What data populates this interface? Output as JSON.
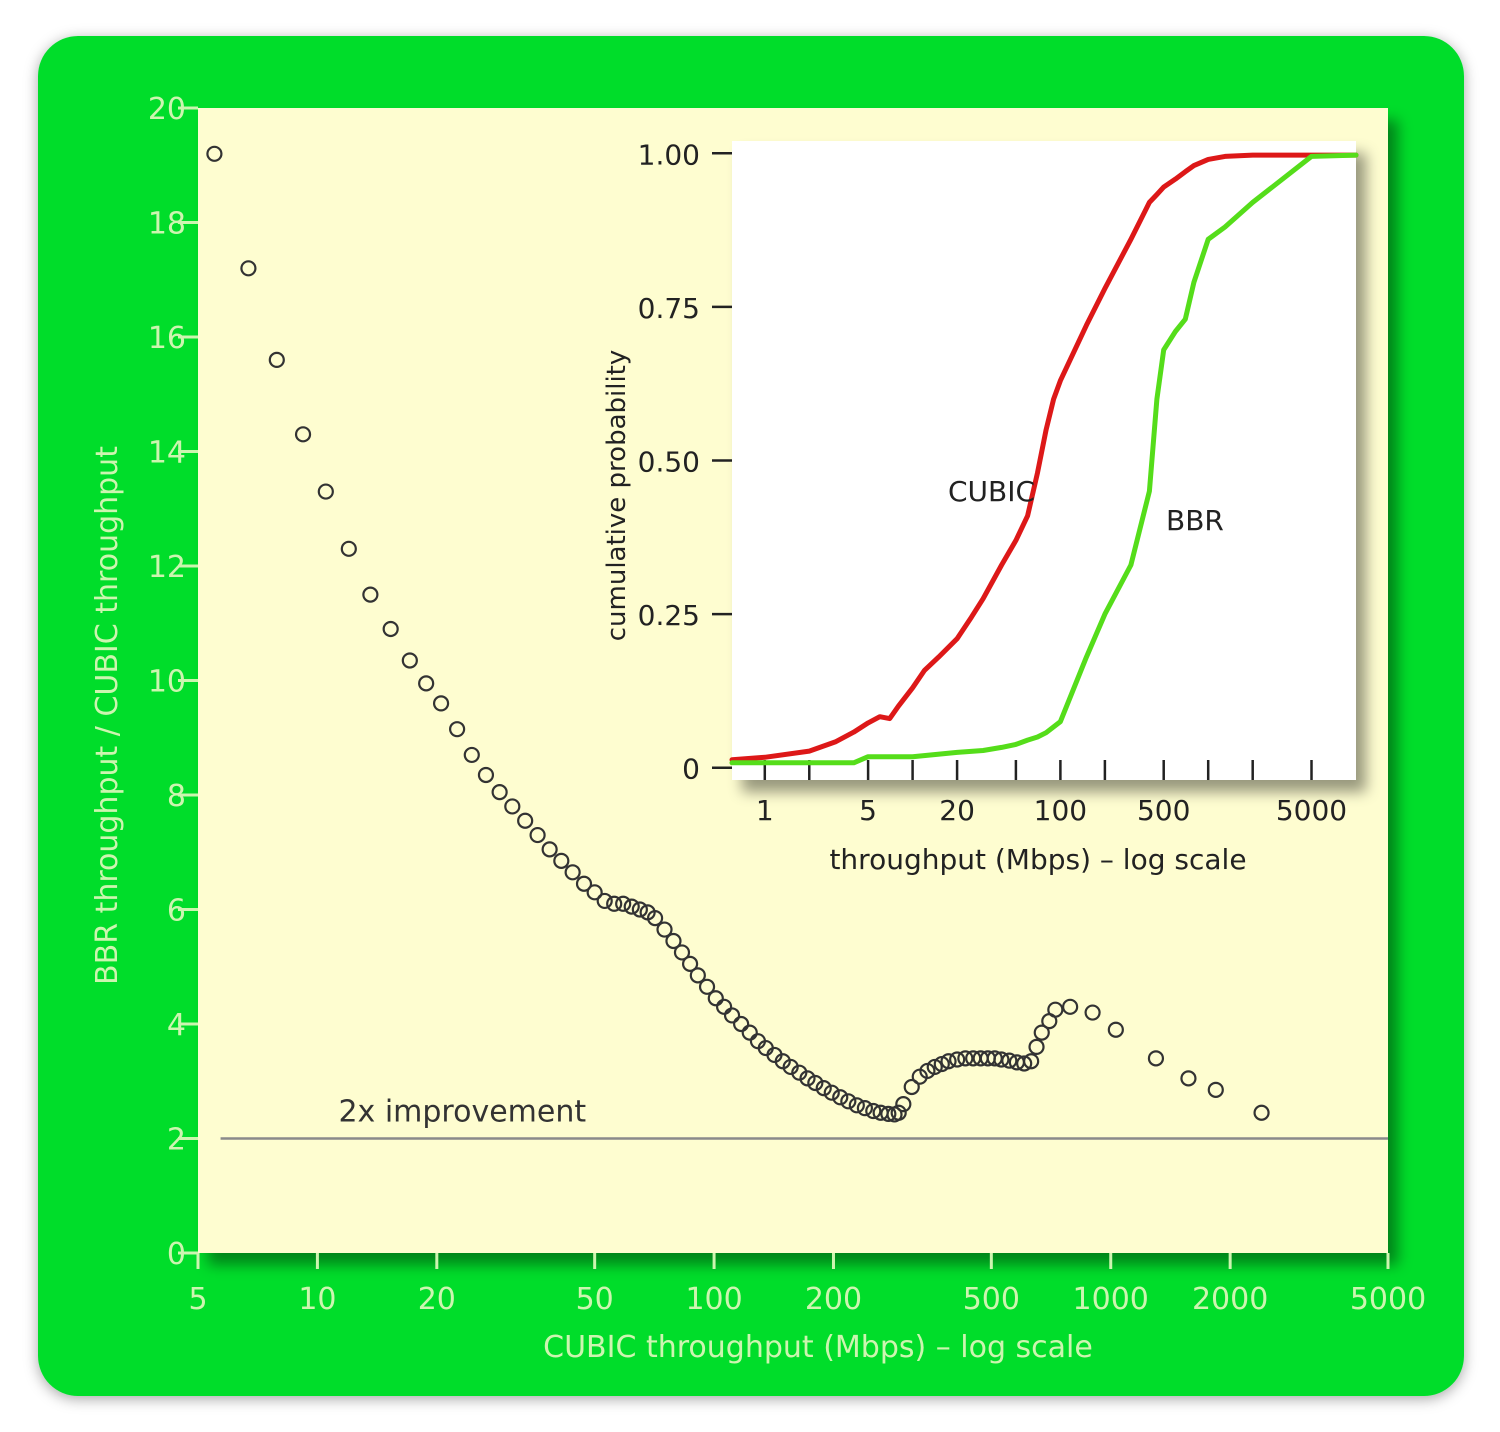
{
  "colors": {
    "frame": "#00dd2a",
    "plot_bg": "#fefdd0",
    "outer_axis_text": "#cdf5b0",
    "scatter_marker": "#333333",
    "cubic": "#dd1818",
    "bbr": "#55dd1a",
    "reference_line": "#8a8a8a"
  },
  "chart_data": [
    {
      "type": "scatter",
      "xlabel": "CUBIC throughput (Mbps) – log scale",
      "ylabel": "BBR throughput / CUBIC throughput",
      "x_scale": "log",
      "xlim": [
        5,
        5000
      ],
      "ylim": [
        0,
        20
      ],
      "x_ticks": [
        5,
        10,
        20,
        50,
        100,
        200,
        500,
        1000,
        2000,
        5000
      ],
      "x_tick_labels": [
        "5",
        "10",
        "20",
        "50",
        "100",
        "200",
        "500",
        "1000",
        "2000",
        "5000"
      ],
      "y_ticks": [
        0,
        2,
        4,
        6,
        8,
        10,
        12,
        14,
        16,
        18,
        20
      ],
      "y_tick_labels": [
        "0",
        "2",
        "4",
        "6",
        "8",
        "10",
        "12",
        "14",
        "16",
        "18",
        "20"
      ],
      "grid": false,
      "reference_line": {
        "y": 2,
        "label": "2x improvement"
      },
      "points": [
        [
          5.5,
          19.2
        ],
        [
          6.7,
          17.2
        ],
        [
          7.9,
          15.6
        ],
        [
          9.2,
          14.3
        ],
        [
          10.5,
          13.3
        ],
        [
          12.0,
          12.3
        ],
        [
          13.6,
          11.5
        ],
        [
          15.3,
          10.9
        ],
        [
          17.1,
          10.35
        ],
        [
          18.8,
          9.95
        ],
        [
          20.5,
          9.6
        ],
        [
          22.5,
          9.15
        ],
        [
          24.5,
          8.7
        ],
        [
          26.6,
          8.35
        ],
        [
          28.8,
          8.05
        ],
        [
          31.0,
          7.8
        ],
        [
          33.4,
          7.55
        ],
        [
          35.9,
          7.3
        ],
        [
          38.5,
          7.05
        ],
        [
          41.2,
          6.85
        ],
        [
          44.0,
          6.65
        ],
        [
          47.0,
          6.45
        ],
        [
          50.0,
          6.3
        ],
        [
          53.0,
          6.15
        ],
        [
          56.0,
          6.1
        ],
        [
          59.0,
          6.1
        ],
        [
          62.0,
          6.05
        ],
        [
          65.0,
          6.0
        ],
        [
          68.0,
          5.95
        ],
        [
          71.0,
          5.85
        ],
        [
          75.0,
          5.65
        ],
        [
          79.0,
          5.45
        ],
        [
          83.0,
          5.25
        ],
        [
          87.0,
          5.05
        ],
        [
          91.0,
          4.85
        ],
        [
          96.0,
          4.65
        ],
        [
          101.0,
          4.45
        ],
        [
          106.0,
          4.3
        ],
        [
          111.0,
          4.15
        ],
        [
          117.0,
          4.0
        ],
        [
          123.0,
          3.85
        ],
        [
          129.0,
          3.7
        ],
        [
          135.0,
          3.58
        ],
        [
          142.0,
          3.46
        ],
        [
          149.0,
          3.35
        ],
        [
          156.0,
          3.25
        ],
        [
          164.0,
          3.15
        ],
        [
          172.0,
          3.05
        ],
        [
          180.0,
          2.97
        ],
        [
          189.0,
          2.88
        ],
        [
          198.0,
          2.8
        ],
        [
          208.0,
          2.72
        ],
        [
          218.0,
          2.65
        ],
        [
          229.0,
          2.58
        ],
        [
          240.0,
          2.53
        ],
        [
          252.0,
          2.48
        ],
        [
          263.0,
          2.45
        ],
        [
          275.0,
          2.43
        ],
        [
          285.0,
          2.42
        ],
        [
          292.0,
          2.45
        ],
        [
          300.0,
          2.6
        ],
        [
          315.0,
          2.9
        ],
        [
          330.0,
          3.08
        ],
        [
          345.0,
          3.18
        ],
        [
          360.0,
          3.25
        ],
        [
          375.0,
          3.3
        ],
        [
          390.0,
          3.35
        ],
        [
          410.0,
          3.38
        ],
        [
          430.0,
          3.4
        ],
        [
          450.0,
          3.4
        ],
        [
          470.0,
          3.4
        ],
        [
          490.0,
          3.4
        ],
        [
          510.0,
          3.4
        ],
        [
          530.0,
          3.38
        ],
        [
          555.0,
          3.36
        ],
        [
          580.0,
          3.33
        ],
        [
          605.0,
          3.31
        ],
        [
          630.0,
          3.35
        ],
        [
          650.0,
          3.6
        ],
        [
          670.0,
          3.85
        ],
        [
          700.0,
          4.05
        ],
        [
          725.0,
          4.25
        ],
        [
          790.0,
          4.3
        ],
        [
          900.0,
          4.2
        ],
        [
          1030.0,
          3.9
        ],
        [
          1300.0,
          3.4
        ],
        [
          1570.0,
          3.05
        ],
        [
          1840.0,
          2.85
        ],
        [
          2400.0,
          2.45
        ]
      ]
    },
    {
      "type": "line",
      "xlabel": "throughput (Mbps) – log scale",
      "ylabel": "cumulative probability",
      "x_scale": "log",
      "xlim": [
        0.6,
        10000
      ],
      "ylim": [
        -0.02,
        1.02
      ],
      "x_ticks": [
        1,
        2,
        5,
        10,
        20,
        50,
        100,
        200,
        500,
        1000,
        2000,
        5000
      ],
      "x_tick_labels": [
        "1",
        "",
        "5",
        "",
        "20",
        "",
        "100",
        "",
        "500",
        "",
        "",
        "5000"
      ],
      "y_ticks": [
        0,
        0.25,
        0.5,
        0.75,
        1.0
      ],
      "y_tick_labels": [
        "0",
        "0.25",
        "0.50",
        "0.75",
        "1.00"
      ],
      "grid": false,
      "series": [
        {
          "name": "CUBIC",
          "points": [
            [
              0.6,
              0.013
            ],
            [
              1,
              0.017
            ],
            [
              2,
              0.027
            ],
            [
              3,
              0.042
            ],
            [
              4,
              0.058
            ],
            [
              5,
              0.073
            ],
            [
              6,
              0.083
            ],
            [
              7,
              0.08
            ],
            [
              8,
              0.1
            ],
            [
              10,
              0.13
            ],
            [
              12,
              0.158
            ],
            [
              15,
              0.18
            ],
            [
              20,
              0.21
            ],
            [
              25,
              0.245
            ],
            [
              30,
              0.275
            ],
            [
              40,
              0.33
            ],
            [
              50,
              0.37
            ],
            [
              60,
              0.41
            ],
            [
              70,
              0.48
            ],
            [
              80,
              0.55
            ],
            [
              90,
              0.6
            ],
            [
              100,
              0.63
            ],
            [
              150,
              0.72
            ],
            [
              200,
              0.78
            ],
            [
              300,
              0.86
            ],
            [
              400,
              0.92
            ],
            [
              450,
              0.933
            ],
            [
              500,
              0.945
            ],
            [
              600,
              0.958
            ],
            [
              700,
              0.97
            ],
            [
              800,
              0.98
            ],
            [
              1000,
              0.99
            ],
            [
              1300,
              0.995
            ],
            [
              2000,
              0.997
            ],
            [
              10000,
              0.997
            ]
          ]
        },
        {
          "name": "BBR",
          "points": [
            [
              0.6,
              0.008
            ],
            [
              4,
              0.008
            ],
            [
              5,
              0.018
            ],
            [
              10,
              0.018
            ],
            [
              20,
              0.025
            ],
            [
              30,
              0.028
            ],
            [
              40,
              0.033
            ],
            [
              50,
              0.038
            ],
            [
              60,
              0.045
            ],
            [
              70,
              0.05
            ],
            [
              80,
              0.057
            ],
            [
              100,
              0.075
            ],
            [
              150,
              0.18
            ],
            [
              200,
              0.25
            ],
            [
              300,
              0.33
            ],
            [
              400,
              0.45
            ],
            [
              450,
              0.6
            ],
            [
              500,
              0.68
            ],
            [
              600,
              0.71
            ],
            [
              700,
              0.73
            ],
            [
              800,
              0.79
            ],
            [
              1000,
              0.86
            ],
            [
              1300,
              0.88
            ],
            [
              2000,
              0.92
            ],
            [
              5000,
              0.995
            ],
            [
              10000,
              0.997
            ]
          ]
        }
      ]
    }
  ]
}
